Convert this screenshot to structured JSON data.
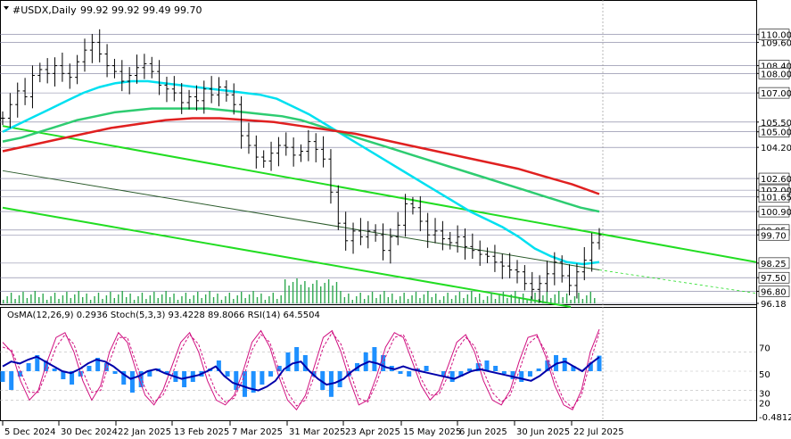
{
  "symbol": "#USDX,Daily",
  "ohlc_text": "99.92 99.92 99.49 99.70",
  "chart_data": [
    {
      "type": "line",
      "panel": "price",
      "title": "#USDX,Daily",
      "xlabel": "",
      "ylabel": "",
      "ylim": [
        96.18,
        110.95
      ],
      "x_tick_labels": [
        "5 Dec 2024",
        "30 Dec 2024",
        "22 Jan 2025",
        "13 Feb 2025",
        "7 Mar 2025",
        "31 Mar 2025",
        "23 Apr 2025",
        "15 May 2025",
        "6 Jun 2025",
        "30 Jun 2025",
        "22 Jul 2025"
      ],
      "y_tick_labels": [
        "110.00",
        "109.60",
        "108.40",
        "108.00",
        "107.00",
        "105.50",
        "105.00",
        "104.20",
        "102.60",
        "102.00",
        "101.65",
        "100.90",
        "99.95",
        "99.70",
        "98.25",
        "97.50",
        "96.80",
        "96.18"
      ],
      "price_close": [
        105.7,
        106.4,
        107.1,
        106.8,
        107.9,
        108.2,
        108.0,
        108.4,
        108.0,
        107.8,
        108.6,
        109.2,
        109.6,
        109.0,
        108.4,
        108.1,
        107.6,
        107.9,
        108.3,
        108.5,
        108.1,
        107.4,
        107.2,
        107.0,
        106.5,
        106.8,
        106.6,
        107.2,
        106.9,
        107.3,
        106.9,
        106.4,
        104.8,
        104.3,
        103.7,
        103.5,
        103.9,
        104.3,
        104.2,
        103.8,
        104.0,
        104.5,
        104.1,
        103.6,
        101.9,
        100.3,
        99.4,
        99.9,
        99.6,
        99.9,
        99.7,
        98.9,
        99.6,
        100.2,
        101.3,
        101.1,
        100.4,
        99.7,
        99.9,
        99.5,
        99.3,
        99.6,
        99.1,
        98.9,
        98.7,
        98.6,
        98.3,
        98.1,
        97.9,
        97.8,
        97.2,
        96.9,
        97.2,
        97.7,
        98.3,
        97.6,
        97.1,
        97.8,
        98.4,
        99.3,
        99.7
      ],
      "series": [
        {
          "name": "",
          "color": "#00e0f0",
          "values": [
            105.0,
            105.4,
            105.8,
            106.2,
            106.6,
            107.0,
            107.3,
            107.5,
            107.6,
            107.6,
            107.5,
            107.4,
            107.3,
            107.2,
            107.1,
            107.0,
            106.9,
            106.7,
            106.3,
            105.9,
            105.4,
            104.9,
            104.4,
            103.9,
            103.4,
            102.9,
            102.4,
            101.9,
            101.4,
            100.9,
            100.5,
            100.1,
            99.6,
            99.0,
            98.6,
            98.3,
            98.2,
            98.3
          ]
        },
        {
          "name": "",
          "color": "#2ecc71",
          "values": [
            104.5,
            104.7,
            105.0,
            105.3,
            105.6,
            105.8,
            106.0,
            106.1,
            106.2,
            106.2,
            106.2,
            106.2,
            106.1,
            106.0,
            105.9,
            105.8,
            105.6,
            105.3,
            105.0,
            104.7,
            104.4,
            104.1,
            103.8,
            103.5,
            103.2,
            102.9,
            102.6,
            102.3,
            102.0,
            101.7,
            101.4,
            101.1,
            100.9
          ]
        },
        {
          "name": "",
          "color": "#e02020",
          "values": [
            104.0,
            104.3,
            104.6,
            104.9,
            105.2,
            105.4,
            105.6,
            105.7,
            105.7,
            105.6,
            105.5,
            105.3,
            105.1,
            104.9,
            104.6,
            104.3,
            104.0,
            103.7,
            103.4,
            103.1,
            102.7,
            102.3,
            101.8
          ]
        }
      ],
      "legend_position": "none",
      "grid": false
    },
    {
      "type": "bar",
      "panel": "oscillator",
      "title": "OsMA(12,26,9) 0.2936 Stoch(5,3,3) 93.4228 89.8066 RSI(14) 64.5504",
      "osma_value": "0.2936",
      "stoch_values": [
        "93.4228",
        "89.8066"
      ],
      "rsi_value": "64.5504",
      "y_tick_labels": [
        "70",
        "50",
        "30",
        "20",
        "-0.4812"
      ],
      "ylim": [
        0,
        100
      ],
      "osma_series": [
        -0.2,
        -0.35,
        -0.1,
        0.15,
        0.3,
        0.2,
        0.05,
        -0.15,
        -0.25,
        -0.1,
        0.1,
        0.25,
        0.15,
        -0.05,
        -0.25,
        -0.4,
        -0.3,
        -0.1,
        0.05,
        -0.05,
        -0.2,
        -0.3,
        -0.2,
        -0.1,
        0.05,
        0.2,
        -0.1,
        -0.35,
        -0.48,
        -0.4,
        -0.25,
        -0.1,
        0.1,
        0.35,
        0.45,
        0.3,
        -0.1,
        -0.35,
        -0.48,
        -0.3,
        -0.1,
        0.15,
        0.35,
        0.45,
        0.3,
        0.1,
        -0.05,
        -0.1,
        0.05,
        0.1,
        0.0,
        -0.1,
        -0.2,
        -0.1,
        0.05,
        0.15,
        0.2,
        0.1,
        -0.05,
        -0.15,
        -0.2,
        -0.1,
        0.05,
        0.2,
        0.3,
        0.25,
        0.1,
        0.0,
        0.15,
        0.29
      ],
      "rsi_series": [
        55,
        60,
        58,
        62,
        65,
        60,
        55,
        50,
        48,
        52,
        58,
        62,
        60,
        55,
        48,
        42,
        45,
        50,
        52,
        48,
        45,
        42,
        44,
        46,
        50,
        55,
        45,
        38,
        35,
        32,
        30,
        34,
        40,
        52,
        58,
        60,
        50,
        42,
        36,
        38,
        42,
        50,
        56,
        60,
        58,
        54,
        52,
        55,
        52,
        50,
        48,
        46,
        44,
        42,
        46,
        50,
        52,
        50,
        48,
        46,
        44,
        42,
        40,
        45,
        52,
        58,
        60,
        55,
        50,
        58,
        64.6
      ],
      "stoch_main_series": [
        80,
        70,
        40,
        20,
        30,
        60,
        85,
        90,
        70,
        40,
        20,
        35,
        70,
        90,
        80,
        50,
        25,
        15,
        30,
        55,
        80,
        90,
        70,
        40,
        20,
        15,
        25,
        50,
        80,
        92,
        75,
        45,
        20,
        10,
        25,
        55,
        85,
        92,
        70,
        40,
        15,
        20,
        45,
        75,
        90,
        85,
        60,
        35,
        20,
        30,
        55,
        80,
        88,
        70,
        40,
        20,
        15,
        30,
        60,
        85,
        88,
        65,
        35,
        15,
        10,
        30,
        70,
        93.4
      ],
      "stoch_signal_series": [
        75,
        72,
        50,
        28,
        28,
        50,
        75,
        88,
        78,
        50,
        28,
        30,
        60,
        85,
        85,
        58,
        32,
        18,
        25,
        45,
        72,
        88,
        78,
        50,
        28,
        18,
        22,
        42,
        72,
        88,
        80,
        52,
        28,
        14,
        20,
        45,
        75,
        90,
        78,
        50,
        22,
        18,
        38,
        65,
        85,
        88,
        68,
        42,
        25,
        26,
        45,
        72,
        85,
        76,
        50,
        28,
        18,
        25,
        50,
        78,
        86,
        70,
        42,
        20,
        12,
        25,
        60,
        89.8
      ],
      "grid": false
    }
  ],
  "x_axis": {
    "labels": [
      "5 Dec 2024",
      "30 Dec 2024",
      "22 Jan 2025",
      "13 Feb 2025",
      "7 Mar 2025",
      "31 Mar 2025",
      "23 Apr 2025",
      "15 May 2025",
      "6 Jun 2025",
      "30 Jun 2025",
      "22 Jul 2025"
    ]
  },
  "colors": {
    "price_line": "#000000",
    "ma_fast": "#00e0f0",
    "ma_mid": "#2ecc71",
    "ma_slow": "#e02020",
    "trend": "#22dd22",
    "channel": "#2a5a2a",
    "osma": "#1e90ff",
    "rsi": "#0000aa",
    "stoch": "#d01080",
    "volume": "#2fa84f",
    "price_label_bg": "#ffffff"
  }
}
